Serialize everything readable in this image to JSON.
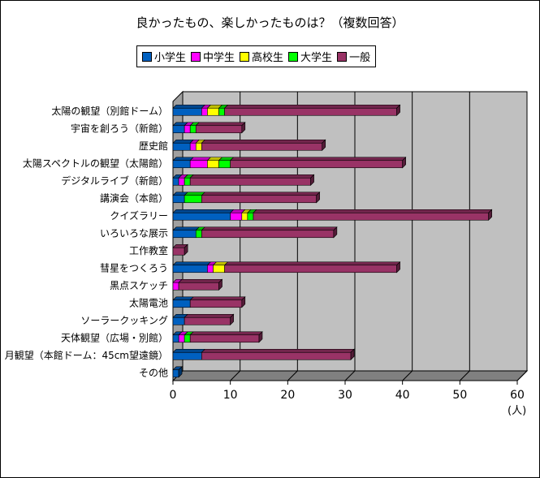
{
  "chart_data": {
    "type": "bar",
    "title": "良かったもの、楽しかったものは？（複数回答）",
    "unit": "(人)",
    "xlim": [
      0,
      60
    ],
    "x_ticks": [
      "0",
      "10",
      "20",
      "30",
      "40",
      "50",
      "60"
    ],
    "grid": true,
    "stacked": true,
    "orientation": "horizontal",
    "legend_position": "top",
    "categories": [
      "太陽の観望（別館ドーム）",
      "宇宙を創ろう（新館）",
      "歴史館",
      "太陽スペクトルの観望（太陽館）",
      "デジタルライブ（新館）",
      "講演会（本館）",
      "クイズラリー",
      "いろいろな展示",
      "工作教室",
      "彗星をつくろう",
      "黒点スケッチ",
      "太陽電池",
      "ソーラークッキング",
      "天体観望（広場・別館）",
      "月観望（本館ドーム：45cm望遠鏡）",
      "その他"
    ],
    "series": [
      {
        "name": "小学生",
        "color": "#0060c0",
        "values": [
          5,
          2,
          3,
          3,
          1,
          2,
          10,
          4,
          0,
          6,
          0,
          3,
          2,
          1,
          5,
          1
        ]
      },
      {
        "name": "中学生",
        "color": "#ff00ff",
        "values": [
          1,
          1,
          1,
          3,
          1,
          0,
          2,
          0,
          0,
          1,
          1,
          0,
          0,
          1,
          0,
          0
        ]
      },
      {
        "name": "高校生",
        "color": "#ffff00",
        "values": [
          2,
          0,
          1,
          2,
          0,
          0,
          1,
          0,
          0,
          2,
          0,
          0,
          0,
          0,
          0,
          0
        ]
      },
      {
        "name": "大学生",
        "color": "#00ff00",
        "values": [
          1,
          1,
          0,
          2,
          1,
          3,
          1,
          1,
          0,
          0,
          0,
          0,
          0,
          1,
          0,
          0
        ]
      },
      {
        "name": "一般",
        "color": "#993366",
        "values": [
          30,
          8,
          21,
          30,
          21,
          20,
          41,
          23,
          2,
          30,
          7,
          9,
          8,
          12,
          26,
          0
        ]
      }
    ]
  }
}
